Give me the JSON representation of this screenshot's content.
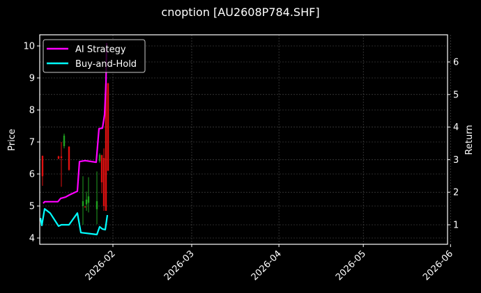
{
  "chart_data": {
    "type": "line",
    "title": "cnoption [AU2608P784.SHF]",
    "xlabel": "",
    "ylabel": "Price",
    "ylabel_right": "Return",
    "x_ticks": [
      "2026-02",
      "2026-03",
      "2026-04",
      "2026-05",
      "2026-06"
    ],
    "y_ticks_left": [
      4,
      5,
      6,
      7,
      8,
      9,
      10
    ],
    "y_ticks_right": [
      1,
      2,
      3,
      4,
      5,
      6
    ],
    "ylim_left": [
      3.8,
      10.3
    ],
    "ylim_right": [
      0.4,
      6.8
    ],
    "xlim": [
      "2026-01-06",
      "2026-06-05"
    ],
    "grid": true,
    "legend_position": "upper left",
    "legend": [
      "AI Strategy",
      "Buy-and-Hold"
    ],
    "series": [
      {
        "name": "AI Strategy",
        "axis": "right",
        "color": "#ff00ff",
        "x": [
          "2026-01-07",
          "2026-01-08",
          "2026-01-12",
          "2026-01-13",
          "2026-01-15",
          "2026-01-16",
          "2026-01-19",
          "2026-01-20",
          "2026-01-22",
          "2026-01-26",
          "2026-01-27",
          "2026-01-28",
          "2026-01-29",
          "2026-01-29",
          "2026-01-30"
        ],
        "values": [
          1.66,
          1.71,
          1.71,
          1.81,
          1.85,
          1.92,
          2.03,
          2.94,
          2.97,
          2.92,
          3.95,
          3.97,
          4.38,
          5.34,
          6.58
        ]
      },
      {
        "name": "Buy-and-Hold",
        "axis": "right",
        "color": "#00ffff",
        "x": [
          "2026-01-06",
          "2026-01-07",
          "2026-01-08",
          "2026-01-10",
          "2026-01-13",
          "2026-01-14",
          "2026-01-16",
          "2026-01-19",
          "2026-01-20",
          "2026-01-26",
          "2026-01-27",
          "2026-01-28",
          "2026-01-29",
          "2026-01-30"
        ],
        "values": [
          1.21,
          0.98,
          1.49,
          1.36,
          0.96,
          1.0,
          1.0,
          1.36,
          0.76,
          0.7,
          0.94,
          0.87,
          0.85,
          1.3
        ]
      }
    ],
    "candles": [
      {
        "x": 61,
        "open": 6.57,
        "close": 5.93,
        "high": 6.57,
        "low": 5.63,
        "color": "red"
      },
      {
        "x": 84,
        "open": 6.55,
        "close": 6.48,
        "high": 6.57,
        "low": 6.46,
        "color": "red"
      },
      {
        "x": 88,
        "open": 6.55,
        "close": 6.5,
        "high": 7.0,
        "low": 5.6,
        "color": "red"
      },
      {
        "x": 92,
        "open": 6.87,
        "close": 7.2,
        "high": 7.26,
        "low": 6.8,
        "color": "green"
      },
      {
        "x": 99,
        "open": 6.85,
        "close": 6.13,
        "high": 6.87,
        "low": 6.1,
        "color": "red"
      },
      {
        "x": 119,
        "open": 5.0,
        "close": 5.15,
        "high": 5.93,
        "low": 4.41,
        "color": "green"
      },
      {
        "x": 122,
        "open": 4.98,
        "close": 4.96,
        "high": 4.99,
        "low": 4.95,
        "color": "red"
      },
      {
        "x": 124,
        "open": 5.05,
        "close": 5.2,
        "high": 5.45,
        "low": 4.85,
        "color": "green"
      },
      {
        "x": 127,
        "open": 5.1,
        "close": 5.3,
        "high": 5.9,
        "low": 4.8,
        "color": "green"
      },
      {
        "x": 139,
        "open": 4.9,
        "close": 5.15,
        "high": 6.08,
        "low": 4.43,
        "color": "green"
      },
      {
        "x": 143,
        "open": 6.4,
        "close": 6.6,
        "high": 6.65,
        "low": 6.35,
        "color": "green"
      },
      {
        "x": 146,
        "open": 6.59,
        "close": 5.74,
        "high": 6.6,
        "low": 5.4,
        "color": "red"
      },
      {
        "x": 149,
        "open": 6.5,
        "close": 5.0,
        "high": 6.8,
        "low": 4.85,
        "color": "red"
      },
      {
        "x": 152,
        "open": 8.83,
        "close": 4.85,
        "high": 9.3,
        "low": 4.85,
        "color": "red"
      },
      {
        "x": 155,
        "open": 8.83,
        "close": 6.1,
        "high": 8.85,
        "low": 6.1,
        "color": "red"
      }
    ]
  },
  "colors": {
    "background": "#000000",
    "ai_strategy": "#ff00ff",
    "buy_and_hold": "#00ffff",
    "candle_up": "#1fa01f",
    "candle_down": "#e01010",
    "grid": "#555555"
  }
}
